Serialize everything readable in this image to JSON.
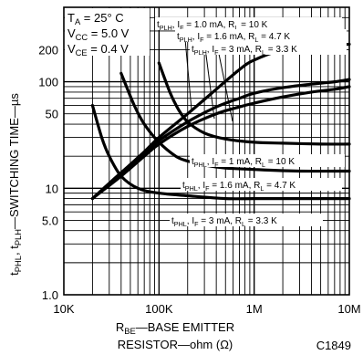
{
  "chart_data": {
    "type": "line",
    "title": "",
    "xlabel": "RBE—BASE EMITTER RESISTOR—ohm (Ω)",
    "xlabel_parts": {
      "sym": "R",
      "sub": "BE",
      "line1_rest": "—BASE EMITTER",
      "line2": "RESISTOR—ohm (Ω)"
    },
    "ylabel": "tPHL, tPLH—SWITCHING TIME—µs",
    "ylabel_parts": {
      "t1": "t",
      "s1": "PHL",
      "mid": ", t",
      "s2": "PLH",
      "rest": "—SWITCHING TIME—µs"
    },
    "xscale": "log",
    "yscale": "log",
    "xlim": [
      10000,
      10000000
    ],
    "ylim": [
      1,
      500
    ],
    "grid": true,
    "x_ticks": [
      {
        "value": 10000,
        "label": "10K"
      },
      {
        "value": 100000,
        "label": "100K"
      },
      {
        "value": 1000000,
        "label": "1M"
      },
      {
        "value": 10000000,
        "label": "10M"
      }
    ],
    "y_ticks": [
      {
        "value": 1,
        "label": "1.0"
      },
      {
        "value": 5,
        "label": "5.0"
      },
      {
        "value": 10,
        "label": "10"
      },
      {
        "value": 50,
        "label": "50"
      },
      {
        "value": 100,
        "label": "100"
      },
      {
        "value": 200,
        "label": "200"
      }
    ],
    "conditions": [
      {
        "sym": "T",
        "sub": "A",
        "rest": " = 25° C"
      },
      {
        "sym": "V",
        "sub": "CC",
        "rest": " = 5.0 V"
      },
      {
        "sym": "V",
        "sub": "CE",
        "rest": " = 0.4 V"
      }
    ],
    "series": [
      {
        "name": "tPLH, IF = 1.0 mA, RL = 10 K",
        "label": {
          "t": "t",
          "ts": "PLH",
          "a": ", I",
          "as": "F",
          "b": " = 1.0 mA, R",
          "bs": "L",
          "c": " = 10 K"
        },
        "x": [
          20000,
          40000,
          70000,
          100000,
          200000,
          400000,
          700000,
          1000000,
          2000000,
          4000000,
          7000000,
          10000000
        ],
        "y": [
          8,
          14,
          22,
          30,
          50,
          85,
          130,
          160,
          200,
          218,
          222,
          225
        ]
      },
      {
        "name": "tPLH, IF = 1.6 mA, RL = 4.7 K",
        "label": {
          "t": "t",
          "ts": "PLH",
          "a": ", I",
          "as": "F",
          "b": " = 1.6 mA, R",
          "bs": "L",
          "c": " = 4.7 K"
        },
        "x": [
          20000,
          40000,
          70000,
          100000,
          200000,
          400000,
          700000,
          1000000,
          2000000,
          4000000,
          7000000,
          10000000
        ],
        "y": [
          8,
          14,
          21,
          28,
          42,
          58,
          70,
          78,
          88,
          95,
          100,
          105
        ]
      },
      {
        "name": "tPLH, IF = 3 mA, RL = 3.3 K",
        "label": {
          "t": "t",
          "ts": "PLH",
          "a": ", I",
          "as": "F",
          "b": " = 3 mA, R",
          "bs": "L",
          "c": " = 3.3 K"
        },
        "x": [
          20000,
          40000,
          70000,
          100000,
          200000,
          400000,
          700000,
          1000000,
          2000000,
          4000000,
          7000000,
          10000000
        ],
        "y": [
          8,
          13,
          20,
          26,
          38,
          50,
          58,
          63,
          72,
          80,
          85,
          90
        ]
      },
      {
        "name": "tPHL, IF = 1 mA, RL = 10 K",
        "label": {
          "t": "t",
          "ts": "PHL",
          "a": ", I",
          "as": "F",
          "b": " = 1 mA, R",
          "bs": "L",
          "c": " = 10 K"
        },
        "x": [
          100000,
          130000,
          160000,
          200000,
          300000,
          500000,
          1000000,
          2000000,
          5000000,
          10000000
        ],
        "y": [
          150,
          80,
          55,
          42,
          33,
          29,
          27,
          26.5,
          26,
          26
        ]
      },
      {
        "name": "tPHL, IF = 1.6 mA, RL = 4.7 K",
        "label": {
          "t": "t",
          "ts": "PHL",
          "a": ", I",
          "as": "F",
          "b": " = 1.6 mA, R",
          "bs": "L",
          "c": " = 4.7 K"
        },
        "x": [
          40000,
          55000,
          70000,
          100000,
          150000,
          200000,
          300000,
          500000,
          1000000,
          3000000,
          10000000
        ],
        "y": [
          120,
          60,
          40,
          27,
          20,
          18,
          16.5,
          15.5,
          15,
          14.5,
          14.5
        ]
      },
      {
        "name": "tPHL, IF = 3 mA, RL = 3.3 K",
        "label": {
          "t": "t",
          "ts": "PHL",
          "a": ", I",
          "as": "F",
          "b": " = 3 mA, R",
          "bs": "L",
          "c": " = 3.3 K"
        },
        "x": [
          20000,
          25000,
          30000,
          40000,
          60000,
          100000,
          200000,
          500000,
          1000000,
          3000000,
          10000000
        ],
        "y": [
          60,
          30,
          20,
          13,
          10,
          9,
          8.5,
          8,
          8,
          8,
          8
        ]
      }
    ],
    "figure_id": "C1849"
  }
}
